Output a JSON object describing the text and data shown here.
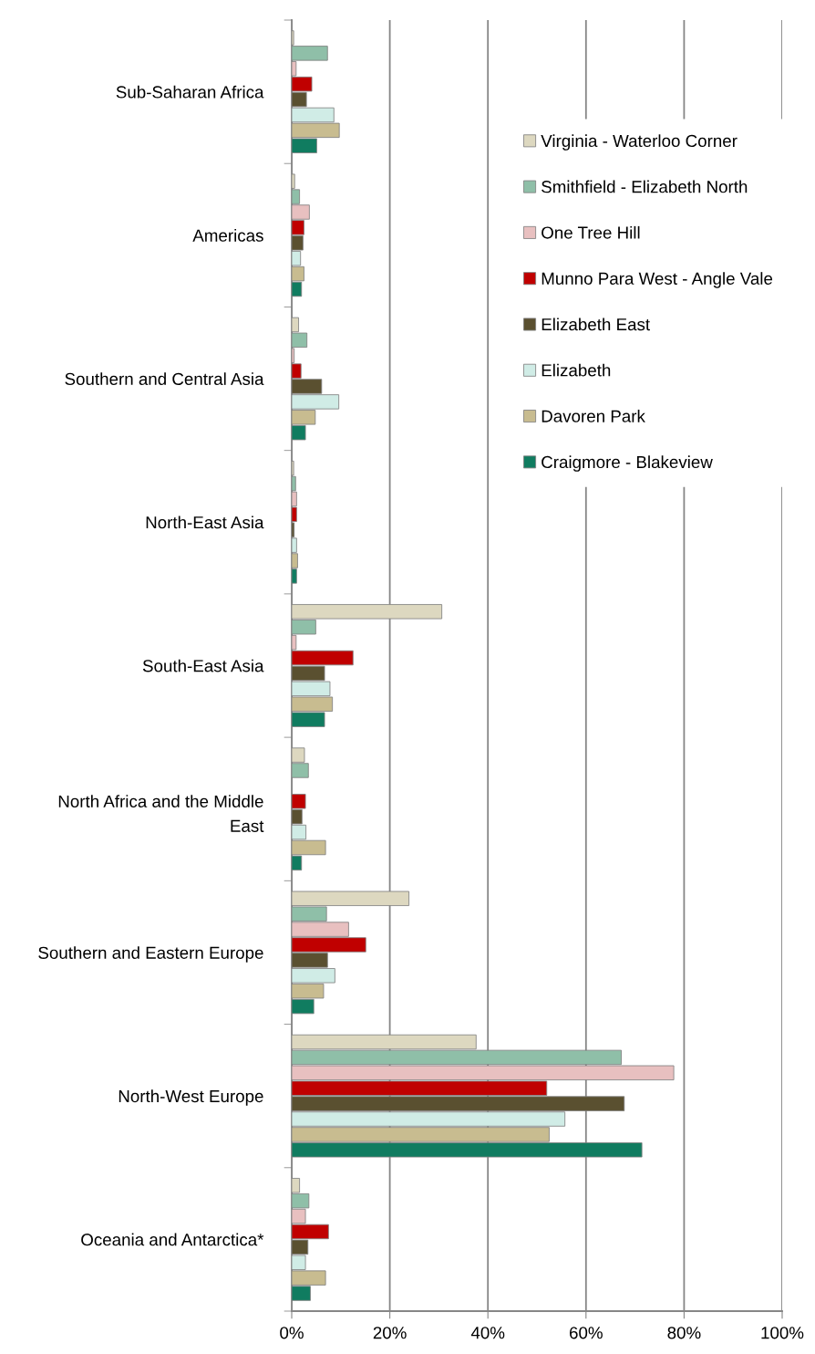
{
  "chart_data": {
    "type": "bar",
    "orientation": "horizontal",
    "categories": [
      "Sub-Saharan Africa",
      "Americas",
      "Southern and Central Asia",
      "North-East Asia",
      "South-East Asia",
      "North Africa and the Middle East",
      "Southern and Eastern Europe",
      "North-West Europe",
      "Oceania and Antarctica*"
    ],
    "series": [
      {
        "name": "Virginia - Waterloo Corner",
        "color": "#ddd8c0",
        "values": [
          0.4,
          0.6,
          1.4,
          0.4,
          30.6,
          2.6,
          23.9,
          37.6,
          1.6
        ]
      },
      {
        "name": "Smithfield - Elizabeth North",
        "color": "#8fbfa8",
        "values": [
          7.3,
          1.6,
          3.1,
          0.8,
          4.9,
          3.4,
          7.1,
          67.2,
          3.5
        ]
      },
      {
        "name": "One Tree Hill",
        "color": "#e8c0c0",
        "values": [
          0.9,
          3.6,
          0.5,
          1.0,
          0.9,
          null,
          11.6,
          77.9,
          2.8
        ]
      },
      {
        "name": "Munno Para West - Angle Vale",
        "color": "#c00000",
        "values": [
          4.1,
          2.5,
          1.9,
          1.0,
          12.5,
          2.8,
          15.1,
          52.0,
          7.5
        ]
      },
      {
        "name": "Elizabeth East",
        "color": "#5a5030",
        "values": [
          3.0,
          2.3,
          6.1,
          0.5,
          6.7,
          2.1,
          7.3,
          67.8,
          3.3
        ]
      },
      {
        "name": "Elizabeth",
        "color": "#d0ece6",
        "values": [
          8.6,
          1.8,
          9.6,
          1.0,
          7.8,
          2.9,
          8.8,
          55.7,
          2.8
        ]
      },
      {
        "name": "Davoren Park",
        "color": "#c8bc90",
        "values": [
          9.7,
          2.5,
          4.8,
          1.2,
          8.3,
          6.9,
          6.5,
          52.5,
          6.9
        ]
      },
      {
        "name": "Craigmore - Blakeview",
        "color": "#107c60",
        "values": [
          5.1,
          2.0,
          2.8,
          1.0,
          6.7,
          2.0,
          4.5,
          71.4,
          3.8
        ]
      }
    ],
    "xlim": [
      0,
      100
    ],
    "xticks": [
      {
        "value": 0,
        "label": "0%"
      },
      {
        "value": 20,
        "label": "20%"
      },
      {
        "value": 40,
        "label": "40%"
      },
      {
        "value": 60,
        "label": "60%"
      },
      {
        "value": 80,
        "label": "80%"
      },
      {
        "value": 100,
        "label": "100%"
      }
    ],
    "grid": "x",
    "legend": "top right"
  }
}
